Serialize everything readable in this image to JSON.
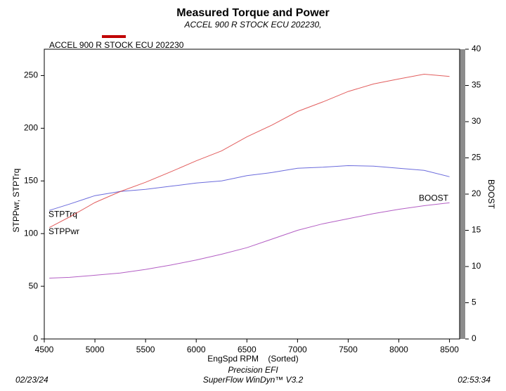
{
  "chart_data": {
    "type": "line",
    "title": "Measured Torque and Power",
    "subtitle": "ACCEL 900 R STOCK ECU 202230,",
    "legend_title": "ACCEL 900 R STOCK ECU 202230",
    "legend_color": "#c00000",
    "x_label": "EngSpd RPM    (Sorted)",
    "y_label": "STPPwr, STPTrq",
    "y2_label": "BOOST",
    "x": [
      4550,
      4750,
      5000,
      5250,
      5500,
      5750,
      6000,
      6250,
      6500,
      6750,
      7000,
      7250,
      7500,
      7750,
      8000,
      8250,
      8500
    ],
    "series": [
      {
        "name": "STPTrq",
        "color": "#3a3ad0",
        "values": [
          122,
          128,
          136,
          140,
          142,
          145,
          148,
          150,
          155,
          158,
          162,
          163,
          164.5,
          164,
          162,
          160,
          154
        ]
      },
      {
        "name": "STPPwr",
        "color": "#d82828",
        "values": [
          105.7,
          115.8,
          129.5,
          139.9,
          148.7,
          158.7,
          169.1,
          178.5,
          191.8,
          203.1,
          215.9,
          225.0,
          234.9,
          242.0,
          246.8,
          251.3,
          249.2
        ]
      },
      {
        "name": "BOOST",
        "color": "#9a28b0",
        "axis": "y2",
        "values": [
          8.4,
          8.5,
          8.8,
          9.1,
          9.6,
          10.2,
          10.9,
          11.7,
          12.6,
          13.8,
          15.0,
          15.9,
          16.6,
          17.3,
          17.9,
          18.4,
          18.8
        ]
      }
    ],
    "xlim": [
      4500,
      8600
    ],
    "xticks": [
      4500,
      5000,
      5500,
      6000,
      6500,
      7000,
      7500,
      8000,
      8500
    ],
    "ylim": [
      0,
      275
    ],
    "yticks": [
      0,
      50,
      100,
      150,
      200,
      250
    ],
    "y2lim": [
      0,
      40
    ],
    "y2ticks": [
      0,
      5,
      10,
      15,
      20,
      25,
      30,
      35,
      40
    ],
    "grid": false,
    "footer": {
      "date": "02/23/24",
      "company": "Precision EFI",
      "software": "SuperFlow WinDyn™ V3.2",
      "time": "02:53:34"
    }
  }
}
